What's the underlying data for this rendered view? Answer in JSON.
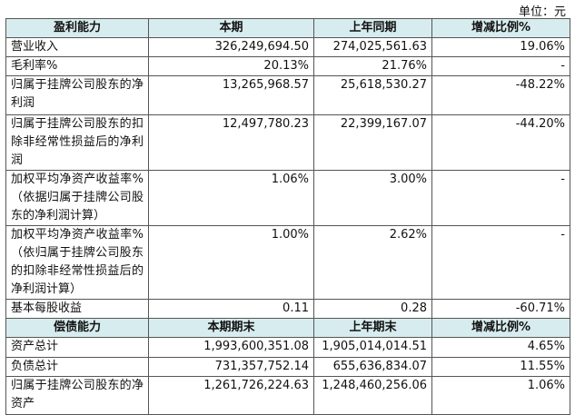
{
  "unit": "单位：元",
  "profit": {
    "header": [
      "盈利能力",
      "本期",
      "上年同期",
      "增减比例%"
    ],
    "rows": [
      [
        "营业收入",
        "326,249,694.50",
        "274,025,561.63",
        "19.06%"
      ],
      [
        "毛利率%",
        "20.13%",
        "21.76%",
        "-"
      ],
      [
        "归属于挂牌公司股东的净利润",
        "13,265,968.57",
        "25,618,530.27",
        "-48.22%"
      ],
      [
        "归属于挂牌公司股东的扣除非经常性损益后的净利润",
        "12,497,780.23",
        "22,399,167.07",
        "-44.20%"
      ],
      [
        "加权平均净资产收益率%（依据归属于挂牌公司股东的净利润计算）",
        "1.06%",
        "3.00%",
        "-"
      ],
      [
        "加权平均净资产收益率%（依归属于挂牌公司股东的扣除非经常性损益后的净利润计算）",
        "1.00%",
        "2.62%",
        "-"
      ],
      [
        "基本每股收益",
        "0.11",
        "0.28",
        "-60.71%"
      ]
    ]
  },
  "solvency": {
    "header": [
      "偿债能力",
      "本期期末",
      "上年期末",
      "增减比例%"
    ],
    "rows": [
      [
        "资产总计",
        "1,993,600,351.08",
        "1,905,014,014.51",
        "4.65%"
      ],
      [
        "负债总计",
        "731,357,752.14",
        "655,636,834.07",
        "11.55%"
      ],
      [
        "归属于挂牌公司股东的净资产",
        "1,261,726,224.63",
        "1,248,460,256.06",
        "1.06%"
      ]
    ]
  }
}
